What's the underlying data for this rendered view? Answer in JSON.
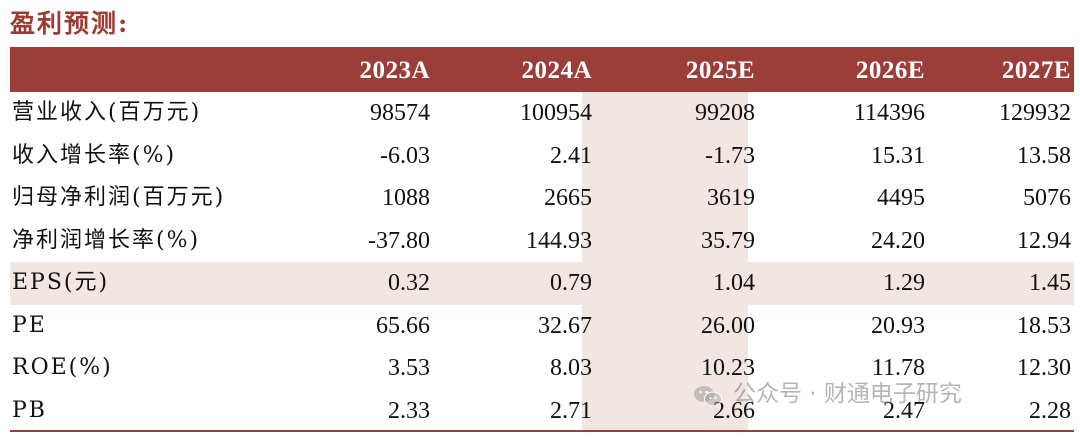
{
  "title": "盈利预测:",
  "colors": {
    "header_bg": "#9b3d39",
    "title": "#9b3b34",
    "shade": "#f1e6e2"
  },
  "table": {
    "years": [
      "2023A",
      "2024A",
      "2025E",
      "2026E",
      "2027E"
    ],
    "rows": [
      {
        "label": "营业收入(百万元)",
        "values": [
          "98574",
          "100954",
          "99208",
          "114396",
          "129932"
        ]
      },
      {
        "label": "收入增长率(%)",
        "values": [
          "-6.03",
          "2.41",
          "-1.73",
          "15.31",
          "13.58"
        ]
      },
      {
        "label": "归母净利润(百万元)",
        "values": [
          "1088",
          "2665",
          "3619",
          "4495",
          "5076"
        ]
      },
      {
        "label": "净利润增长率(%)",
        "values": [
          "-37.80",
          "144.93",
          "35.79",
          "24.20",
          "12.94"
        ]
      },
      {
        "label": "EPS(元)",
        "values": [
          "0.32",
          "0.79",
          "1.04",
          "1.29",
          "1.45"
        ]
      },
      {
        "label": "PE",
        "values": [
          "65.66",
          "32.67",
          "26.00",
          "20.93",
          "18.53"
        ]
      },
      {
        "label": "ROE(%)",
        "values": [
          "3.53",
          "8.03",
          "10.23",
          "11.78",
          "12.30"
        ]
      },
      {
        "label": "PB",
        "values": [
          "2.33",
          "2.71",
          "2.66",
          "2.47",
          "2.28"
        ]
      }
    ]
  },
  "watermark": {
    "icon": "wechat-icon",
    "text": "公众号 · 财通电子研究"
  }
}
